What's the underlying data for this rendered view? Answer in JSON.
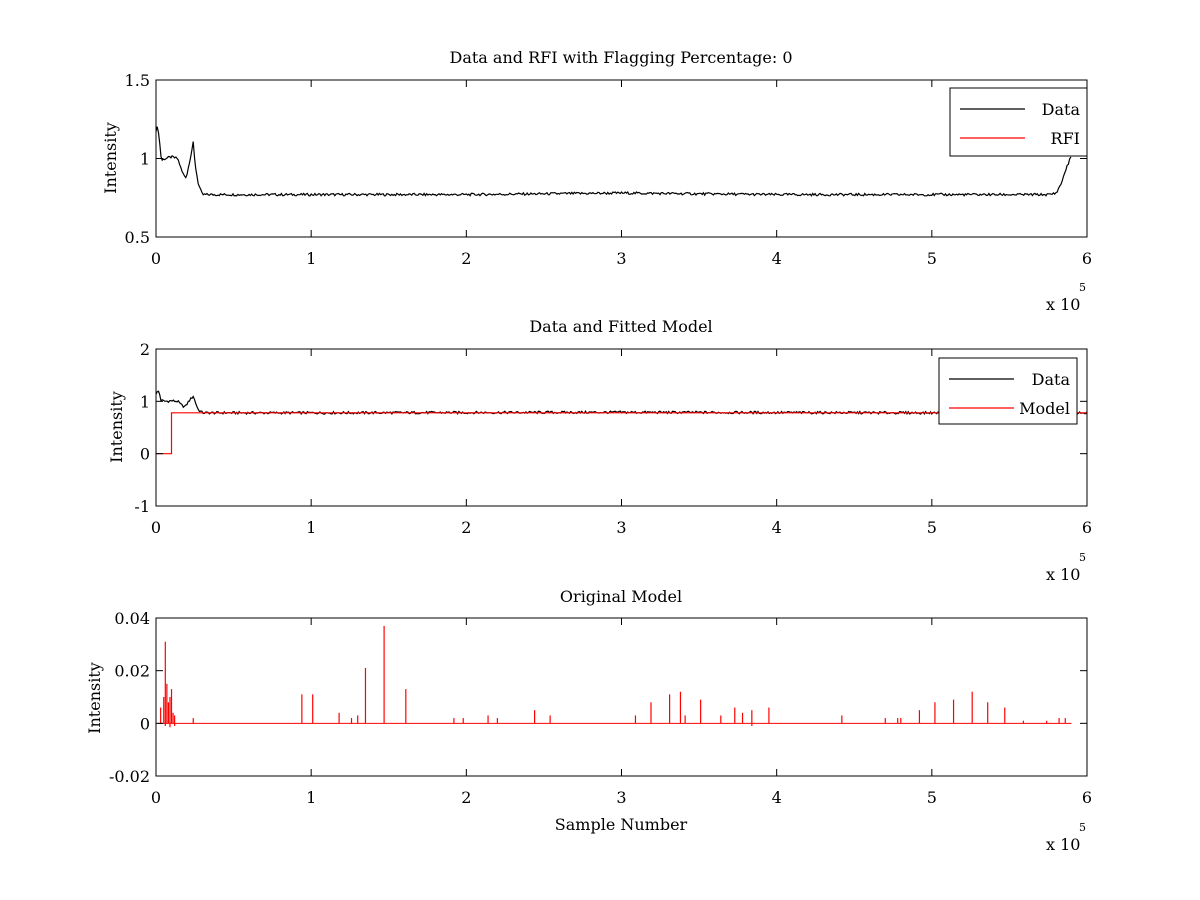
{
  "chart_data": [
    {
      "type": "line",
      "title": "Data and RFI with Flagging Percentage: 0",
      "xlabel": "",
      "ylabel": "Intensity",
      "xlim": [
        0,
        600000
      ],
      "ylim": [
        0.5,
        1.5
      ],
      "x_ticks": [
        0,
        1,
        2,
        3,
        4,
        5,
        6
      ],
      "y_ticks": [
        0.5,
        1,
        1.5
      ],
      "x_multiplier": "x 10",
      "x_multiplier_exp": "5",
      "legend": {
        "placement": "top-right",
        "entries": [
          "Data",
          "RFI"
        ]
      },
      "series": [
        {
          "name": "Data",
          "color": "#000000",
          "x": [
            0,
            1000,
            2000,
            3000,
            4000,
            6000,
            10000,
            14000,
            17000,
            19000,
            20000,
            22000,
            24000,
            25000,
            27000,
            29000,
            30000,
            50000,
            100000,
            200000,
            300000,
            400000,
            500000,
            576000,
            580000,
            583000,
            586000,
            590000
          ],
          "y": [
            1.18,
            1.2,
            1.15,
            1.02,
            0.99,
            1.0,
            1.01,
            1.0,
            0.91,
            0.88,
            0.9,
            1.0,
            1.1,
            0.98,
            0.85,
            0.79,
            0.77,
            0.77,
            0.77,
            0.77,
            0.78,
            0.77,
            0.77,
            0.77,
            0.78,
            0.83,
            0.92,
            1.02
          ]
        },
        {
          "name": "RFI",
          "color": "#ff0000",
          "x": [],
          "y": []
        }
      ]
    },
    {
      "type": "line",
      "title": "Data and Fitted Model",
      "xlabel": "",
      "ylabel": "Intensity",
      "xlim": [
        0,
        600000
      ],
      "ylim": [
        -1,
        2
      ],
      "x_ticks": [
        0,
        1,
        2,
        3,
        4,
        5,
        6
      ],
      "y_ticks": [
        -1,
        0,
        1,
        2
      ],
      "x_multiplier": "x 10",
      "x_multiplier_exp": "5",
      "legend": {
        "placement": "top-right",
        "entries": [
          "Data",
          "Model"
        ]
      },
      "series": [
        {
          "name": "Data",
          "color": "#000000",
          "x": [
            0,
            2000,
            3000,
            6000,
            10000,
            14000,
            17000,
            19000,
            21000,
            24000,
            27000,
            30000,
            100000,
            300000,
            500000,
            600000
          ],
          "y": [
            1.15,
            1.2,
            1.02,
            1.0,
            1.01,
            1.0,
            0.91,
            0.9,
            1.0,
            1.1,
            0.85,
            0.78,
            0.78,
            0.79,
            0.78,
            0.78
          ]
        },
        {
          "name": "Model",
          "color": "#ff0000",
          "x": [
            0,
            10000,
            10001,
            600000
          ],
          "y": [
            0,
            0,
            0.78,
            0.78
          ]
        }
      ]
    },
    {
      "type": "line",
      "title": "Original Model",
      "xlabel": "Sample Number",
      "ylabel": "Intensity",
      "xlim": [
        0,
        600000
      ],
      "ylim": [
        -0.02,
        0.04
      ],
      "x_ticks": [
        0,
        1,
        2,
        3,
        4,
        5,
        6
      ],
      "y_ticks": [
        -0.02,
        0,
        0.02,
        0.04
      ],
      "x_multiplier": "x 10",
      "x_multiplier_exp": "5",
      "series": [
        {
          "name": "",
          "color": "#ff0000",
          "spikes_x": [
            3000,
            5000,
            6000,
            7000,
            8000,
            9000,
            10000,
            11000,
            12000,
            24000,
            94000,
            101000,
            118000,
            126000,
            130000,
            135000,
            147000,
            161000,
            192000,
            198000,
            214000,
            220000,
            244000,
            254000,
            309000,
            319000,
            331000,
            338000,
            341000,
            351000,
            364000,
            373000,
            378000,
            384000,
            395000,
            442000,
            470000,
            478000,
            480000,
            492000,
            502000,
            514000,
            526000,
            536000,
            547000,
            559000,
            574000,
            582000,
            586000
          ],
          "spikes_y": [
            0.006,
            0.01,
            0.031,
            0.015,
            0.008,
            0.01,
            0.013,
            0.004,
            0.003,
            0.002,
            0.011,
            0.011,
            0.004,
            0.002,
            0.003,
            0.021,
            0.037,
            0.013,
            0.002,
            0.002,
            0.003,
            0.002,
            0.005,
            0.003,
            0.003,
            0.008,
            0.011,
            0.012,
            0.003,
            0.009,
            0.003,
            0.006,
            0.004,
            0.005,
            0.006,
            0.003,
            0.002,
            0.002,
            0.002,
            0.005,
            0.008,
            0.009,
            0.012,
            0.008,
            0.006,
            0.001,
            0.001,
            0.002,
            0.002
          ],
          "dips_x": [
            6000,
            9000,
            12000,
            384000
          ],
          "dips_y": [
            -0.001,
            -0.0015,
            -0.001,
            -0.001
          ]
        }
      ]
    }
  ]
}
